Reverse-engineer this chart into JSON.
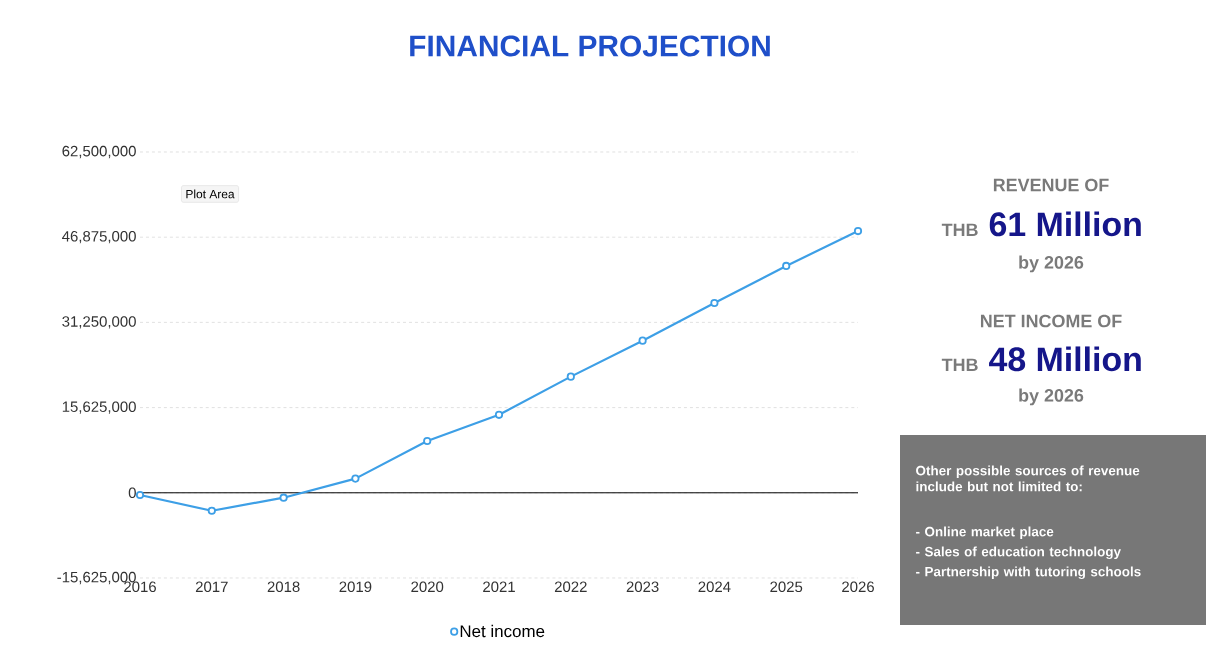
{
  "chart_data": {
    "type": "line",
    "title": "FINANCIAL PROJECTION",
    "x": [
      2016,
      2017,
      2018,
      2019,
      2020,
      2021,
      2022,
      2023,
      2024,
      2025,
      2026
    ],
    "series": [
      {
        "name": "Net income",
        "color": "#3d9fe6",
        "values": [
          -400000,
          -3300000,
          -900000,
          2600000,
          9500000,
          14300000,
          21300000,
          27900000,
          34800000,
          41600000,
          48000000
        ]
      }
    ],
    "xlim": [
      2016,
      2026
    ],
    "xticks": [
      2016,
      2017,
      2018,
      2019,
      2020,
      2021,
      2022,
      2023,
      2024,
      2025,
      2026
    ],
    "ylim": [
      -15625000,
      62500000
    ],
    "yticks": [
      {
        "value": -15625000,
        "label": "-15,625,000"
      },
      {
        "value": 0,
        "label": "0"
      },
      {
        "value": 15625000,
        "label": "15,625,000"
      },
      {
        "value": 31250000,
        "label": "31,250,000"
      },
      {
        "value": 46875000,
        "label": "46,875,000"
      },
      {
        "value": 62500000,
        "label": "62,500,000"
      }
    ],
    "grid": "y",
    "legend": "bottom",
    "marker": "circle",
    "line_style": "solid",
    "ref_lines": [
      {
        "axis": "y",
        "value": 0,
        "color": "#000000"
      }
    ],
    "annotations": [
      "Plot Area",
      "REVENUE OF",
      "THB",
      "61 Million",
      "by 2026",
      "NET INCOME OF",
      "THB",
      "48 Million",
      "by 2026",
      "Other possible sources of revenue include but not limited to:",
      "- Online market place",
      "- Sales of education technology",
      "- Partnership with tutoring schools"
    ]
  }
}
